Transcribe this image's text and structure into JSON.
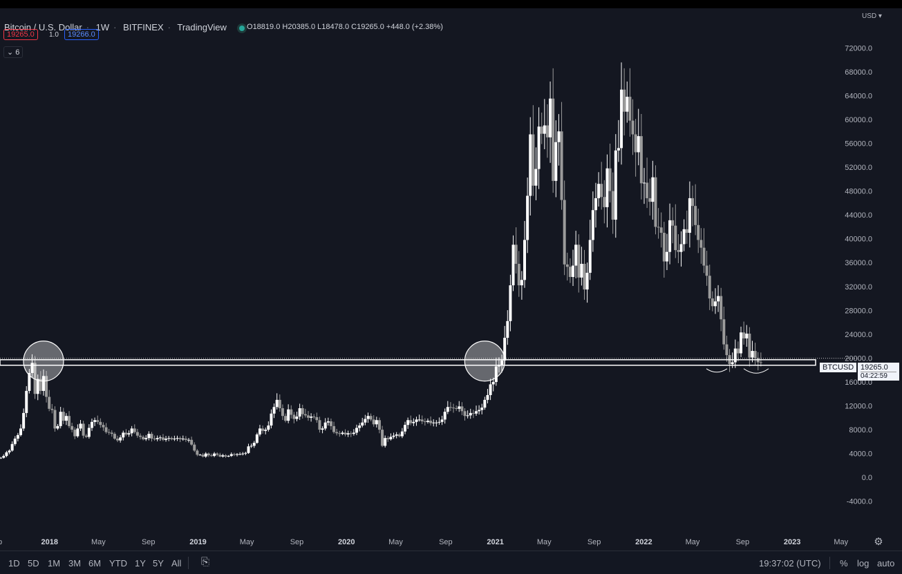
{
  "header": {
    "symbol_title": "Bitcoin / U.S. Dollar",
    "interval": "1W",
    "exchange": "BITFINEX",
    "source": "TradingView",
    "ohlc": {
      "o_label": "O",
      "o": "18819.0",
      "h_label": "H",
      "h": "20385.0",
      "l_label": "L",
      "l": "18478.0",
      "c_label": "C",
      "c": "19265.0",
      "change": "+448.0 (+2.38%)"
    },
    "bid": "19265.0",
    "spread": "1.0",
    "ask": "19266.0",
    "indicator_toggle": "6",
    "currency": "USD"
  },
  "last_price": {
    "ticker": "BTCUSD",
    "price": "19265.0",
    "countdown": "04:22:59"
  },
  "bottom_bar": {
    "ranges": [
      "1D",
      "5D",
      "1M",
      "3M",
      "6M",
      "YTD",
      "1Y",
      "5Y",
      "All"
    ],
    "time": "19:37:02 (UTC)",
    "percent": "%",
    "log": "log",
    "auto": "auto"
  },
  "colors": {
    "background": "#141721",
    "candle_up": "#ffffff",
    "candle_down": "#9b9b9b",
    "level": "#ffffff",
    "bid": "#f23645",
    "ask": "#2962ff"
  },
  "chart_data": {
    "type": "candlestick",
    "title": "Bitcoin / U.S. Dollar · 1W · BITFINEX",
    "ylim": [
      -6000,
      74000
    ],
    "y_ticks": [
      -4000,
      0,
      4000,
      8000,
      12000,
      16000,
      20000,
      24000,
      28000,
      32000,
      36000,
      40000,
      44000,
      48000,
      52000,
      56000,
      60000,
      64000,
      68000,
      72000
    ],
    "x_tick_labels": [
      {
        "label": "p",
        "date": "2017-09"
      },
      {
        "label": "2018",
        "date": "2018-01"
      },
      {
        "label": "May",
        "date": "2018-05"
      },
      {
        "label": "Sep",
        "date": "2018-09"
      },
      {
        "label": "2019",
        "date": "2019-01"
      },
      {
        "label": "May",
        "date": "2019-05"
      },
      {
        "label": "Sep",
        "date": "2019-09"
      },
      {
        "label": "2020",
        "date": "2020-01"
      },
      {
        "label": "May",
        "date": "2020-05"
      },
      {
        "label": "Sep",
        "date": "2020-09"
      },
      {
        "label": "2021",
        "date": "2021-01"
      },
      {
        "label": "May",
        "date": "2021-05"
      },
      {
        "label": "Sep",
        "date": "2021-09"
      },
      {
        "label": "2022",
        "date": "2022-01"
      },
      {
        "label": "May",
        "date": "2022-05"
      },
      {
        "label": "Sep",
        "date": "2022-09"
      },
      {
        "label": "2023",
        "date": "2023-01"
      },
      {
        "label": "May",
        "date": "2023-05"
      }
    ],
    "support_level": 19265,
    "highlight_circles": [
      {
        "date": "2017-12-17",
        "price": 19500
      },
      {
        "date": "2020-12-06",
        "price": 19500
      }
    ],
    "grid": false,
    "series": [
      {
        "name": "BTCUSD",
        "weekly_closes": [
          3300,
          3600,
          4200,
          4500,
          5600,
          6500,
          7100,
          8200,
          10800,
          14500,
          17500,
          19200,
          14000,
          16500,
          14500,
          17000,
          13500,
          11500,
          11300,
          8200,
          8600,
          11000,
          9500,
          10300,
          8600,
          8000,
          6900,
          8200,
          9000,
          7000,
          6800,
          8300,
          9300,
          9600,
          9300,
          8800,
          8400,
          7600,
          7500,
          7300,
          6500,
          6200,
          6700,
          7500,
          7200,
          7400,
          8200,
          7600,
          7000,
          6800,
          6400,
          6600,
          7300,
          6500,
          6400,
          6600,
          6700,
          6300,
          6500,
          6600,
          6400,
          6500,
          6600,
          6400,
          6500,
          6300,
          6300,
          5500,
          4500,
          3800,
          3800,
          3500,
          4000,
          3700,
          3600,
          4000,
          3800,
          3500,
          3700,
          3500,
          3600,
          3900,
          3800,
          3900,
          3900,
          4000,
          4100,
          5200,
          5300,
          5800,
          7200,
          8200,
          7800,
          8000,
          8700,
          10700,
          11800,
          13000,
          11600,
          10300,
          9500,
          11400,
          10500,
          9800,
          10200,
          11600,
          10600,
          10400,
          10000,
          10200,
          10100,
          9600,
          8000,
          8200,
          9200,
          9400,
          8600,
          7600,
          7400,
          7300,
          7500,
          7200,
          7400,
          7300,
          7500,
          8300,
          8700,
          9200,
          9800,
          10300,
          9700,
          8900,
          9600,
          8000,
          5300,
          6600,
          6400,
          6800,
          7000,
          7200,
          6900,
          7700,
          8800,
          9600,
          9100,
          9300,
          9700,
          9700,
          9400,
          9300,
          9500,
          9100,
          9200,
          9200,
          9300,
          9700,
          11000,
          11800,
          11700,
          11600,
          11500,
          11900,
          11100,
          10300,
          10400,
          10800,
          10700,
          11100,
          11300,
          11700,
          13000,
          13800,
          15600,
          16000,
          18600,
          18900,
          19600,
          23400,
          26200,
          32200,
          39000,
          35800,
          32200,
          33100,
          39800,
          47200,
          57500,
          48900,
          51700,
          58800,
          57600,
          59000,
          57000,
          63500,
          49700,
          56200,
          58000,
          46500,
          35700,
          35300,
          33600,
          35500,
          39000,
          33500,
          35800,
          31500,
          34300,
          39800,
          44800,
          46800,
          49200,
          47000,
          45300,
          51800,
          48000,
          43200,
          54800,
          55200,
          65000,
          61300,
          63800,
          59800,
          57500,
          54500,
          57200,
          49300,
          49400,
          46800,
          46200,
          50300,
          42000,
          41900,
          41000,
          36200,
          37800,
          43100,
          42200,
          38100,
          37800,
          39100,
          41600,
          41000,
          46800,
          45500,
          42300,
          39800,
          38500,
          35500,
          33800,
          30000,
          28700,
          29500,
          30400,
          26500,
          22300,
          20500,
          19000,
          19300,
          21600,
          20800,
          24300,
          23300,
          24100,
          20100,
          21200,
          20000,
          19300,
          19265
        ]
      }
    ]
  }
}
